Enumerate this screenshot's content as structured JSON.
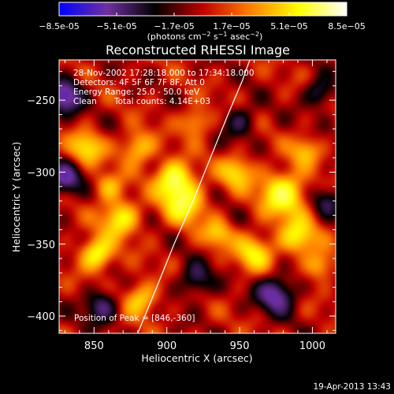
{
  "chart_data": {
    "type": "heatmap",
    "title": "Reconstructed RHESSI Image",
    "xlabel": "Heliocentric X (arcsec)",
    "ylabel": "Heliocentric Y (arcsec)",
    "xlim": [
      826,
      1016
    ],
    "ylim": [
      -412,
      -222
    ],
    "x_ticks": [
      850,
      900,
      950,
      1000
    ],
    "y_ticks": [
      -250,
      -300,
      -350,
      -400
    ],
    "colorbar": {
      "ticks": [
        "-8.5e-05",
        "-5.1e-05",
        "-1.7e-05",
        "1.7e-05",
        "5.1e-05",
        "8.5e-05"
      ],
      "min": -8.5e-05,
      "max": 8.5e-05,
      "colormap": [
        "#0000ff",
        "#7030a0",
        "#000000",
        "#c00000",
        "#ff8000",
        "#ffff00",
        "#ffffff"
      ]
    },
    "annotations": {
      "time": "28-Nov-2002 17:28:18.000 to 17:34:18.000",
      "detectors": "Detectors: 4F 5F 6F 7F 8F, Att 0",
      "energy": "Energy Range: 25.0 - 50.0 keV",
      "method": "Clean",
      "counts": "Total counts: 4.14E+03",
      "peak": "Position of Peak = [846,-360]"
    },
    "limb_points": [
      [
        880,
        -412
      ],
      [
        893,
        -380
      ],
      [
        905,
        -350
      ],
      [
        918,
        -320
      ],
      [
        930,
        -290
      ],
      [
        942,
        -260
      ],
      [
        952,
        -236
      ],
      [
        957,
        -222
      ]
    ],
    "sources": [
      {
        "x": 905,
        "y": -305,
        "amp": 1.0,
        "sig": 9
      },
      {
        "x": 912,
        "y": -322,
        "amp": 0.85,
        "sig": 10
      },
      {
        "x": 980,
        "y": -315,
        "amp": 1.0,
        "sig": 11
      },
      {
        "x": 990,
        "y": -345,
        "amp": 0.8,
        "sig": 9
      },
      {
        "x": 868,
        "y": -332,
        "amp": 0.85,
        "sig": 9
      },
      {
        "x": 852,
        "y": -357,
        "amp": 0.95,
        "sig": 8
      },
      {
        "x": 845,
        "y": -283,
        "amp": 0.75,
        "sig": 8
      },
      {
        "x": 880,
        "y": -283,
        "amp": 0.7,
        "sig": 8
      },
      {
        "x": 948,
        "y": -300,
        "amp": 0.7,
        "sig": 8
      },
      {
        "x": 960,
        "y": -356,
        "amp": 0.75,
        "sig": 9
      },
      {
        "x": 882,
        "y": -388,
        "amp": 0.7,
        "sig": 8
      },
      {
        "x": 935,
        "y": -343,
        "amp": 0.6,
        "sig": 7
      },
      {
        "x": 1005,
        "y": -365,
        "amp": 0.6,
        "sig": 7
      },
      {
        "x": 860,
        "y": -310,
        "amp": 0.55,
        "sig": 7
      },
      {
        "x": 920,
        "y": -265,
        "amp": 0.6,
        "sig": 7
      },
      {
        "x": 995,
        "y": -285,
        "amp": 0.55,
        "sig": 7
      },
      {
        "x": 830,
        "y": -247,
        "amp": -1.0,
        "sig": 8
      },
      {
        "x": 830,
        "y": -305,
        "amp": -0.8,
        "sig": 8
      },
      {
        "x": 1005,
        "y": -245,
        "amp": -0.6,
        "sig": 7
      },
      {
        "x": 975,
        "y": -385,
        "amp": -0.9,
        "sig": 9
      },
      {
        "x": 855,
        "y": -393,
        "amp": -0.7,
        "sig": 8
      },
      {
        "x": 920,
        "y": -375,
        "amp": -0.6,
        "sig": 8
      },
      {
        "x": 950,
        "y": -265,
        "amp": -0.5,
        "sig": 8
      },
      {
        "x": 1010,
        "y": -320,
        "amp": -0.5,
        "sig": 7
      }
    ]
  },
  "footer": {
    "timestamp": "19-Apr-2013 13:43"
  }
}
